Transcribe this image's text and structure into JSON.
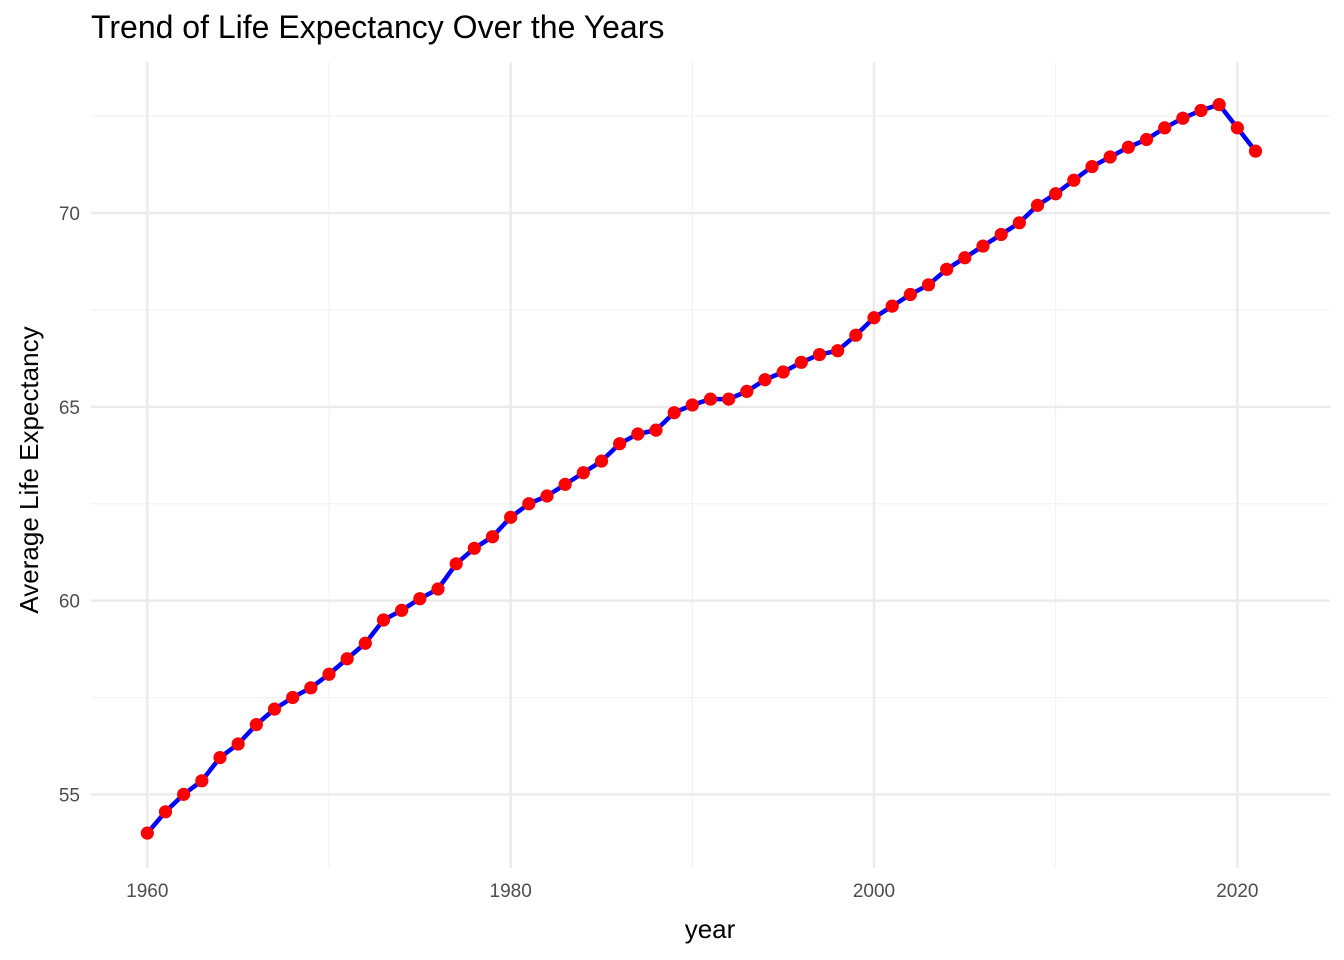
{
  "chart_data": {
    "type": "line",
    "title": "Trend of Life Expectancy Over the Years",
    "xlabel": "year",
    "ylabel": "Average Life Expectancy",
    "xlim": [
      1956.9,
      2025.1
    ],
    "ylim": [
      53.1,
      73.9
    ],
    "x_ticks": [
      1960,
      1980,
      2000,
      2020
    ],
    "y_ticks": [
      55,
      60,
      65,
      70
    ],
    "grid": true,
    "legend": "none",
    "line_color": "#0000ff",
    "point_color": "#ff0000",
    "series": [
      {
        "x": [
          1960,
          1961,
          1962,
          1963,
          1964,
          1965,
          1966,
          1967,
          1968,
          1969,
          1970,
          1971,
          1972,
          1973,
          1974,
          1975,
          1976,
          1977,
          1978,
          1979,
          1980,
          1981,
          1982,
          1983,
          1984,
          1985,
          1986,
          1987,
          1988,
          1989,
          1990,
          1991,
          1992,
          1993,
          1994,
          1995,
          1996,
          1997,
          1998,
          1999,
          2000,
          2001,
          2002,
          2003,
          2004,
          2005,
          2006,
          2007,
          2008,
          2009,
          2010,
          2011,
          2012,
          2013,
          2014,
          2015,
          2016,
          2017,
          2018,
          2019,
          2020,
          2021
        ],
        "values": [
          54.0,
          54.55,
          55.0,
          55.35,
          55.95,
          56.3,
          56.8,
          57.2,
          57.5,
          57.75,
          58.1,
          58.5,
          58.9,
          59.5,
          59.75,
          60.05,
          60.3,
          60.95,
          61.35,
          61.65,
          62.15,
          62.5,
          62.7,
          63.0,
          63.3,
          63.6,
          64.05,
          64.3,
          64.4,
          64.85,
          65.05,
          65.2,
          65.2,
          65.4,
          65.7,
          65.9,
          66.15,
          66.35,
          66.45,
          66.85,
          67.3,
          67.6,
          67.9,
          68.15,
          68.55,
          68.85,
          69.15,
          69.45,
          69.75,
          70.2,
          70.5,
          70.85,
          71.2,
          71.45,
          71.7,
          71.9,
          72.2,
          72.45,
          72.65,
          72.8,
          72.2,
          71.6
        ]
      }
    ]
  }
}
